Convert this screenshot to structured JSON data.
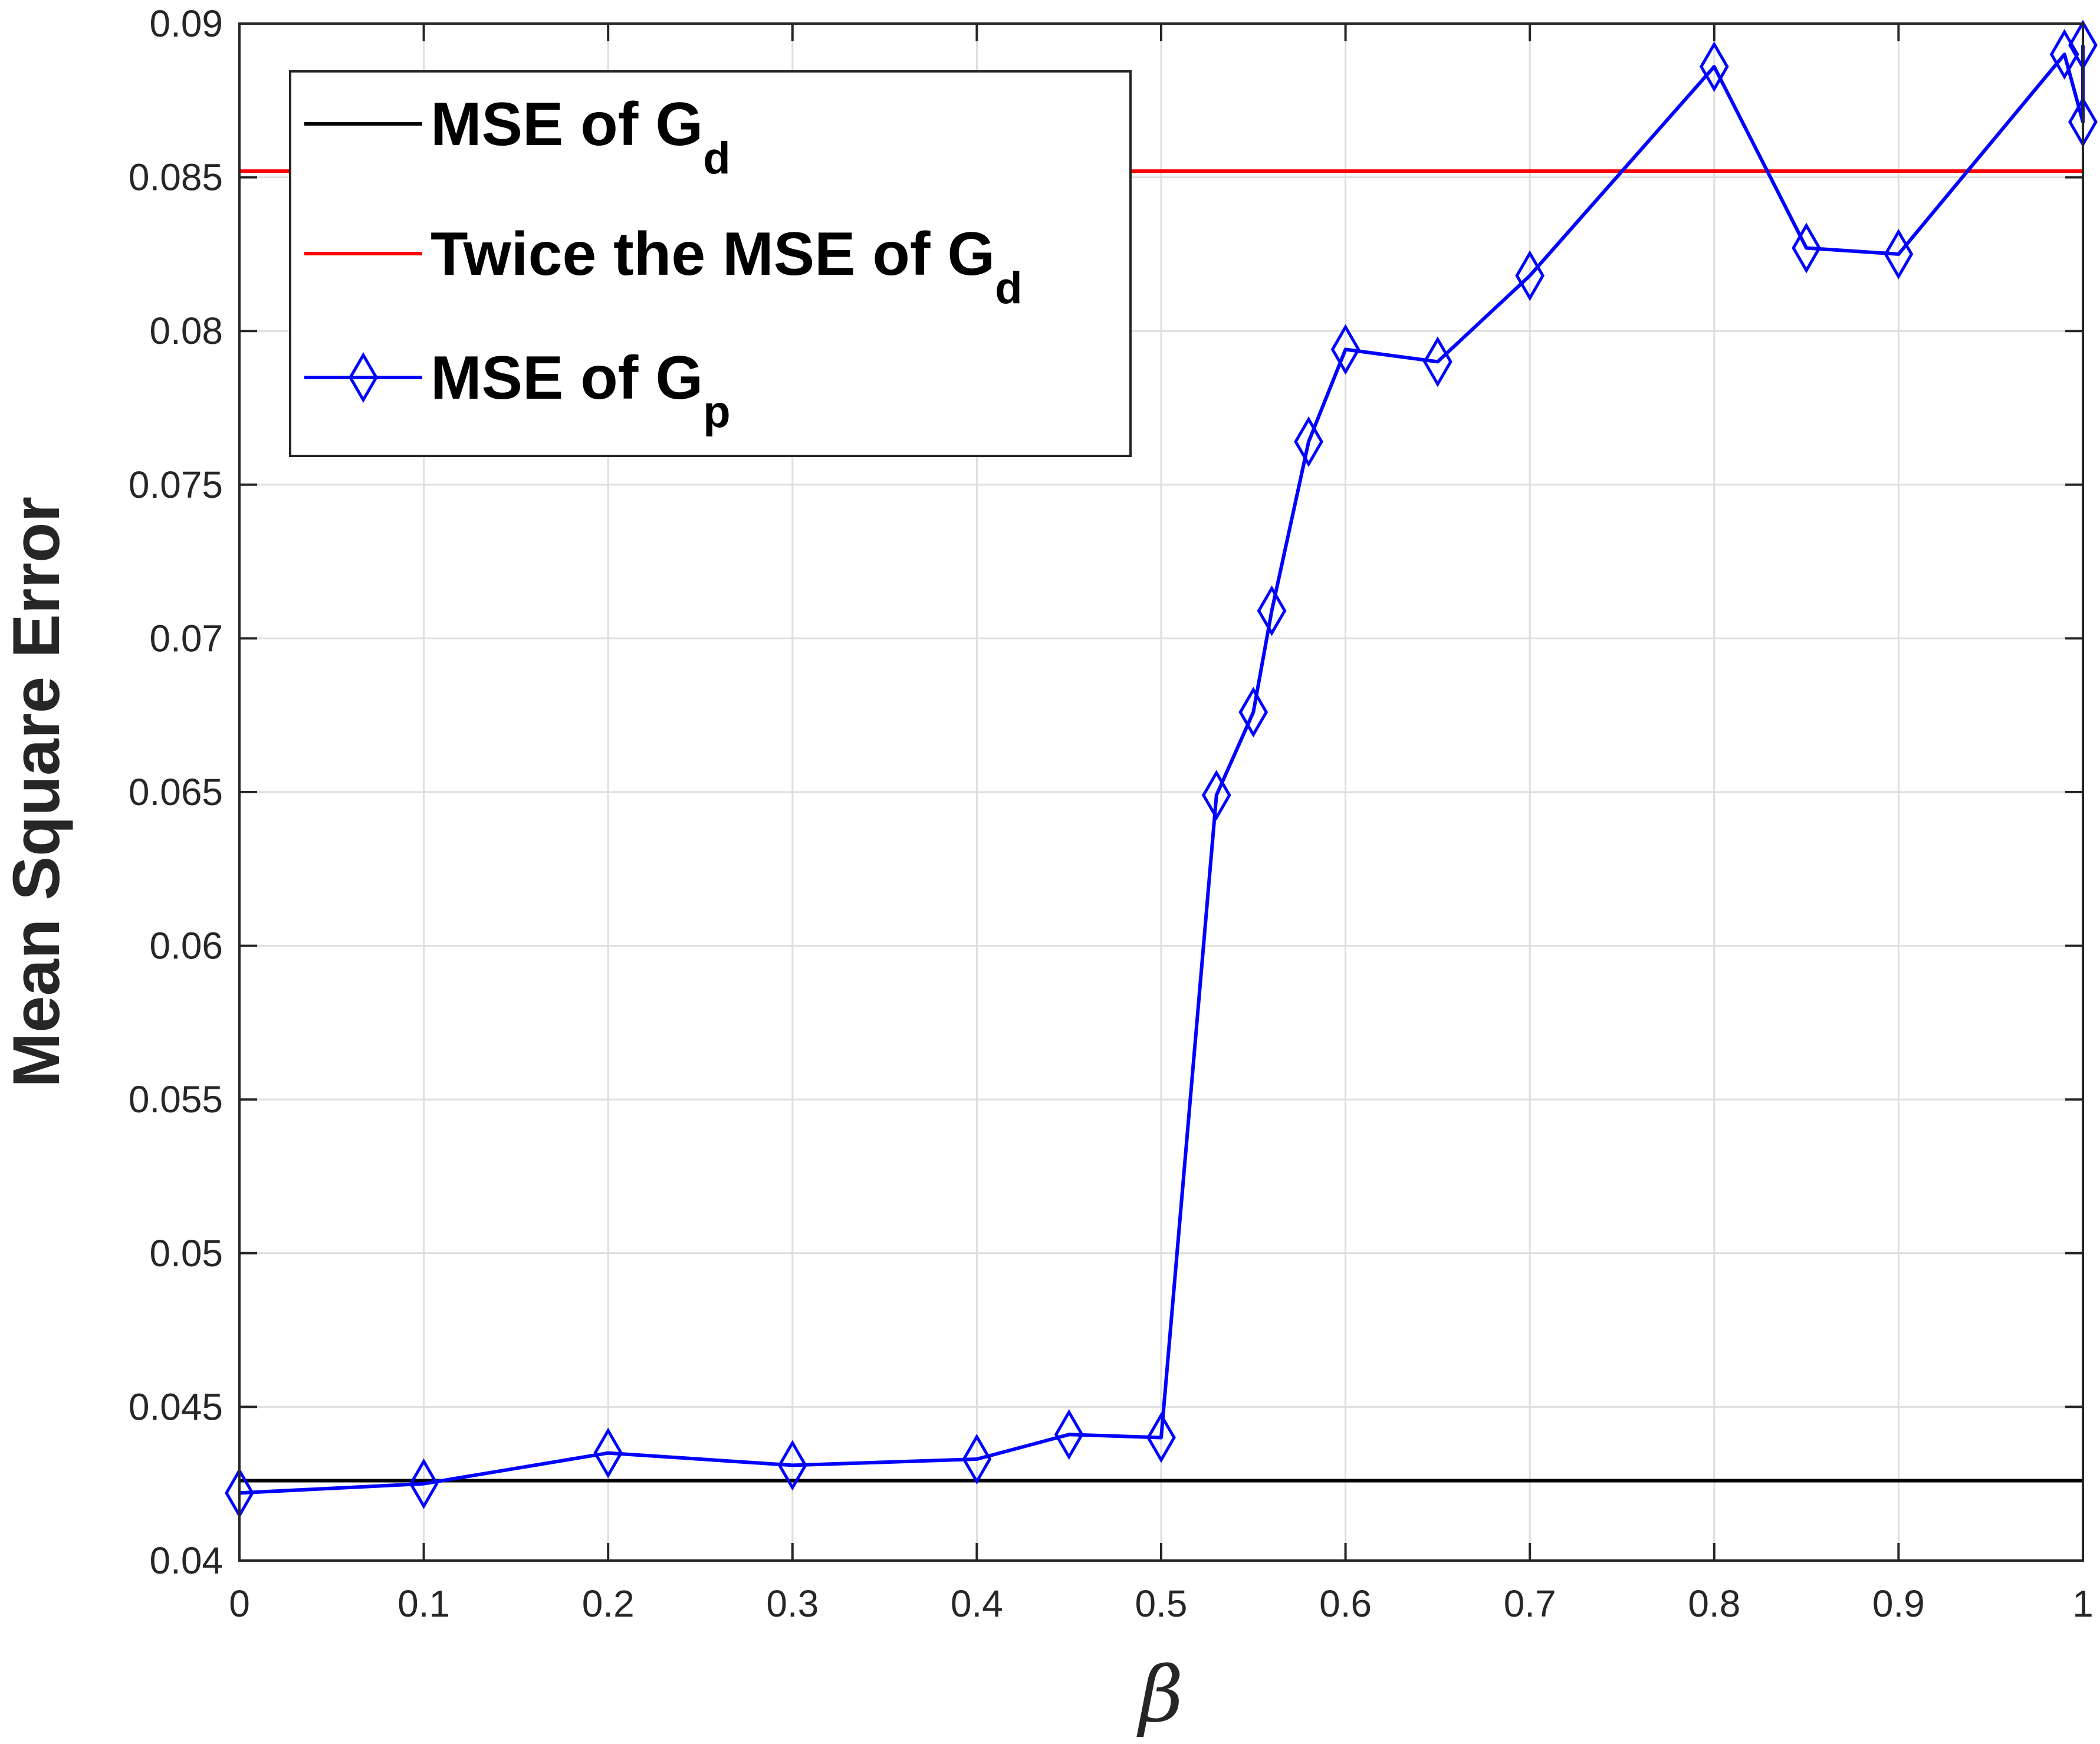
{
  "chart_data": {
    "type": "line",
    "xlabel": "β",
    "ylabel": "Mean Square Error",
    "xlim": [
      0,
      1
    ],
    "ylim": [
      0.04,
      0.09
    ],
    "grid": true,
    "legend_position": "top-left",
    "x_ticks": [
      "0",
      "0.1",
      "0.2",
      "0.3",
      "0.4",
      "0.5",
      "0.6",
      "0.7",
      "0.8",
      "0.9",
      "1"
    ],
    "y_ticks": [
      "0.04",
      "0.045",
      "0.05",
      "0.055",
      "0.06",
      "0.065",
      "0.07",
      "0.075",
      "0.08",
      "0.085",
      "0.09"
    ],
    "series": [
      {
        "name": "MSE of G",
        "name_sub": "d",
        "color": "#000000",
        "marker": "none",
        "style": "horizontal",
        "y": 0.0426
      },
      {
        "name": "Twice the MSE of G",
        "name_sub": "d",
        "color": "#ff0000",
        "marker": "none",
        "style": "horizontal",
        "y": 0.0852
      },
      {
        "name": "MSE of G",
        "name_sub": "p",
        "color": "#0000ff",
        "marker": "diamond",
        "style": "line",
        "x": [
          0,
          0.1,
          0.2,
          0.3,
          0.4,
          0.45,
          0.5,
          0.53,
          0.55,
          0.56,
          0.58,
          0.6,
          0.65,
          0.7,
          0.8,
          0.85,
          0.9,
          0.99,
          1.0,
          1.0
        ],
        "values": [
          0.0422,
          0.0425,
          0.0435,
          0.0431,
          0.0433,
          0.0441,
          0.044,
          0.0649,
          0.0676,
          0.0709,
          0.0764,
          0.0794,
          0.079,
          0.0818,
          0.0886,
          0.0827,
          0.0825,
          0.089,
          0.0868,
          0.0893
        ]
      }
    ]
  }
}
